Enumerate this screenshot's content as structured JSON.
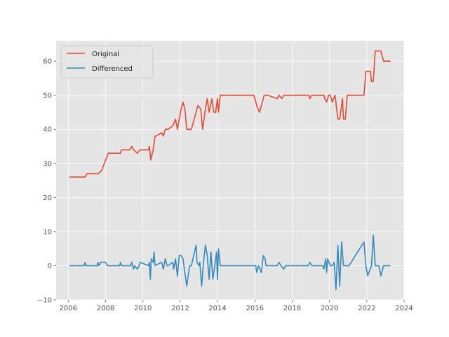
{
  "chart_data": {
    "type": "line",
    "title": "",
    "xlabel": "",
    "ylabel": "",
    "xlim": [
      2005.35,
      2024.0
    ],
    "ylim": [
      -10,
      66
    ],
    "xticks": [
      2006,
      2008,
      2010,
      2012,
      2014,
      2016,
      2018,
      2020,
      2022,
      2024
    ],
    "yticks": [
      -10,
      0,
      10,
      20,
      30,
      40,
      50,
      60
    ],
    "xtick_labels": [
      "2006",
      "2008",
      "2010",
      "2012",
      "2014",
      "2016",
      "2018",
      "2020",
      "2022",
      "2024"
    ],
    "ytick_labels": [
      "−10",
      "0",
      "10",
      "20",
      "30",
      "40",
      "50",
      "60"
    ],
    "grid": true,
    "legend_position": "upper-left",
    "series": [
      {
        "name": "Original",
        "color": "#E24A33",
        "x": [
          2006.08,
          2006.9,
          2007.0,
          2007.6,
          2007.8,
          2008.0,
          2008.15,
          2008.8,
          2008.85,
          2009.3,
          2009.4,
          2009.5,
          2009.7,
          2009.85,
          2010.3,
          2010.35,
          2010.42,
          2010.55,
          2010.65,
          2010.7,
          2011.0,
          2011.1,
          2011.2,
          2011.3,
          2011.35,
          2011.6,
          2011.75,
          2011.85,
          2011.95,
          2012.05,
          2012.15,
          2012.25,
          2012.35,
          2012.5,
          2012.6,
          2012.9,
          2012.95,
          2013.1,
          2013.2,
          2013.35,
          2013.45,
          2013.55,
          2013.7,
          2013.8,
          2013.9,
          2014.0,
          2014.05,
          2014.15,
          2014.25,
          2014.3,
          2014.38,
          2014.45,
          2015.95,
          2016.05,
          2016.1,
          2016.25,
          2016.4,
          2016.5,
          2016.6,
          2016.7,
          2017.2,
          2017.3,
          2017.45,
          2017.55,
          2017.65,
          2018.9,
          2018.95,
          2019.05,
          2019.7,
          2019.75,
          2019.85,
          2019.95,
          2020.05,
          2020.15,
          2020.3,
          2020.45,
          2020.5,
          2020.55,
          2020.7,
          2020.75,
          2020.85,
          2020.95,
          2021.05,
          2021.1,
          2021.85,
          2021.95,
          2022.2,
          2022.25,
          2022.35,
          2022.45,
          2022.75,
          2022.9,
          2023.25
        ],
        "values": [
          26,
          26,
          27,
          27,
          28,
          31,
          33,
          33,
          34,
          34,
          35,
          34,
          33,
          34,
          34,
          35,
          31,
          34,
          38,
          38,
          39,
          38,
          40,
          40,
          40,
          41,
          43,
          40,
          43,
          46,
          48,
          46,
          40,
          40,
          40,
          46,
          47,
          46,
          40,
          46,
          49,
          45,
          49,
          45,
          45,
          49,
          45,
          50,
          50,
          50,
          50,
          50,
          50,
          48,
          47,
          45,
          48,
          50,
          50,
          50,
          49,
          50,
          49,
          50,
          50,
          50,
          49,
          50,
          50,
          49,
          48,
          50,
          50,
          48,
          50,
          43,
          43,
          43,
          49,
          43,
          43,
          50,
          50,
          50,
          50,
          57,
          57,
          54,
          54,
          63,
          63,
          60,
          60
        ]
      },
      {
        "name": "Differenced",
        "color": "#348ABD",
        "x": [
          2006.08,
          2006.85,
          2006.9,
          2006.95,
          2007.55,
          2007.6,
          2007.65,
          2007.75,
          2007.8,
          2008.0,
          2008.1,
          2008.75,
          2008.8,
          2008.85,
          2009.35,
          2009.4,
          2009.5,
          2009.55,
          2009.7,
          2009.8,
          2009.85,
          2010.3,
          2010.35,
          2010.4,
          2010.45,
          2010.55,
          2010.6,
          2010.65,
          2011.0,
          2011.1,
          2011.2,
          2011.3,
          2011.35,
          2011.6,
          2011.65,
          2011.75,
          2011.85,
          2011.95,
          2012.05,
          2012.15,
          2012.25,
          2012.35,
          2012.5,
          2012.6,
          2012.85,
          2012.9,
          2013.0,
          2013.05,
          2013.15,
          2013.25,
          2013.35,
          2013.45,
          2013.55,
          2013.65,
          2013.75,
          2013.85,
          2013.95,
          2014.0,
          2014.05,
          2014.15,
          2014.25,
          2014.3,
          2014.45,
          2014.55,
          2016.05,
          2016.1,
          2016.2,
          2016.35,
          2016.45,
          2016.55,
          2016.6,
          2016.7,
          2017.2,
          2017.3,
          2017.4,
          2017.55,
          2017.65,
          2018.85,
          2018.95,
          2019.05,
          2019.65,
          2019.7,
          2019.8,
          2019.85,
          2019.9,
          2020.05,
          2020.15,
          2020.25,
          2020.35,
          2020.45,
          2020.55,
          2020.65,
          2020.75,
          2020.85,
          2020.95,
          2021.05,
          2021.85,
          2021.95,
          2022.05,
          2022.25,
          2022.35,
          2022.45,
          2022.65,
          2022.75,
          2022.9,
          2023.25
        ],
        "values": [
          0,
          0,
          1,
          0,
          0,
          1,
          0,
          1,
          1,
          1,
          0,
          0,
          1,
          0,
          0,
          1,
          -1,
          0,
          -1,
          0,
          1,
          0,
          1,
          -4,
          2,
          1,
          4,
          0,
          1,
          -1,
          2,
          0,
          0,
          1,
          -1,
          2,
          -3,
          3,
          3,
          2,
          -2,
          -6,
          0,
          0,
          6,
          1,
          0,
          1,
          -6,
          1,
          6,
          3,
          -4,
          4,
          -4,
          0,
          4,
          -4,
          5,
          0,
          0,
          0,
          0,
          0,
          0,
          -2,
          0,
          -2,
          3,
          2,
          0,
          0,
          0,
          1,
          0,
          -1,
          0,
          0,
          1,
          0,
          0,
          -1,
          2,
          -2,
          2,
          0,
          0,
          1,
          -7,
          6,
          -6,
          7,
          0,
          0,
          0,
          0,
          7,
          0,
          -3,
          0,
          9,
          0,
          0,
          -3,
          0,
          0
        ]
      }
    ]
  }
}
